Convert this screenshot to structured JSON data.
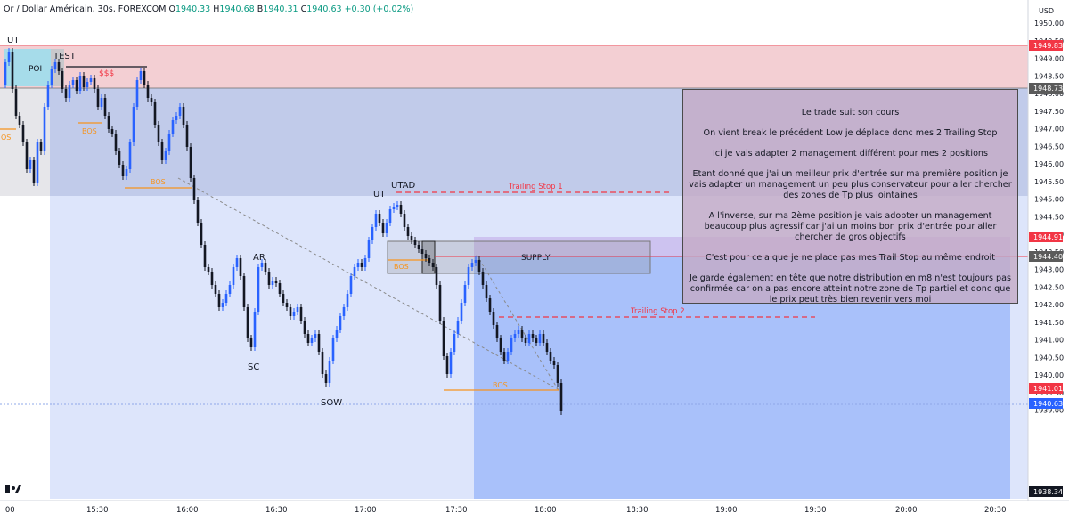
{
  "header": {
    "symbol": "Or / Dollar Américain, 30s, FOREXCOM",
    "o_label": "O",
    "o": "1940.33",
    "h_label": "H",
    "h": "1940.68",
    "b_label": "B",
    "b": "1940.31",
    "c_label": "C",
    "c": "1940.63",
    "change": "+0.30 (+0.02%)"
  },
  "price_axis": {
    "currency": "USD",
    "ticks": [
      "1950.00",
      "1949.50",
      "1949.00",
      "1948.50",
      "1948.00",
      "1947.50",
      "1947.00",
      "1946.50",
      "1946.00",
      "1945.50",
      "1945.00",
      "1944.50",
      "1944.00",
      "1943.50",
      "1943.00",
      "1942.50",
      "1942.00",
      "1941.50",
      "1941.00",
      "1940.50",
      "1940.00",
      "1939.50",
      "1939.00"
    ],
    "badges": [
      {
        "text": "1949.83",
        "color": "#f23645"
      },
      {
        "text": "1948.73",
        "color": "#5b5b5b"
      },
      {
        "text": "1944.91",
        "color": "#f23645"
      },
      {
        "text": "1944.40",
        "color": "#5b5b5b"
      },
      {
        "text": "1941.01",
        "color": "#f23645"
      },
      {
        "text": "1940.63",
        "color": "#2962ff"
      },
      {
        "text": "1938.34",
        "color": "#131722"
      }
    ]
  },
  "time_axis": {
    "ticks": [
      ":00",
      "15:30",
      "16:00",
      "16:30",
      "17:00",
      "17:30",
      "18:00",
      "18:30",
      "19:00",
      "19:30",
      "20:00",
      "20:30"
    ]
  },
  "annotations": {
    "ut1": "UT",
    "poi": "POI",
    "test": "TEST",
    "sss": "$$$",
    "os": "OS",
    "bos1": "BOS",
    "bos2": "BOS",
    "bos3": "BOS",
    "bos4": "BOS",
    "ar": "AR",
    "sc": "SC",
    "sow": "SOW",
    "ut2": "UT",
    "utad": "UTAD",
    "supply": "SUPPLY",
    "ts1": "Trailing Stop 1",
    "ts2": "Trailing Stop 2"
  },
  "note": {
    "lines": [
      "Le trade suit son cours",
      "On vient break le précédent Low je déplace donc mes 2 Trailing Stop",
      "Ici je vais adapter 2 management différent pour mes 2 positions",
      "Etant donné que j'ai un meilleur prix d'entrée sur ma première position je vais adapter un management un peu plus conservateur pour aller chercher des zones de Tp plus lointaines",
      "A l'inverse, sur ma 2ème position je vais adopter un management beaucoup plus agressif car j'ai un moins bon prix d'entrée pour aller chercher de gros objectifs",
      "C'est pour cela que je ne place pas mes Trail Stop au même endroit",
      "Je garde également en tête que notre distribution en m8 n'est toujours pas confirmée car on a pas encore atteint notre zone de Tp partiel et donc que le prix peut très bien revenir vers moi"
    ]
  },
  "colors": {
    "bull": "#2962ff",
    "bear": "#131722",
    "red_zone": "#f23645",
    "orange": "#f7941d",
    "purple": "#b39ddb",
    "tv_logo": "#131722"
  },
  "icons": {
    "logo": "tradingview-logo-icon"
  }
}
